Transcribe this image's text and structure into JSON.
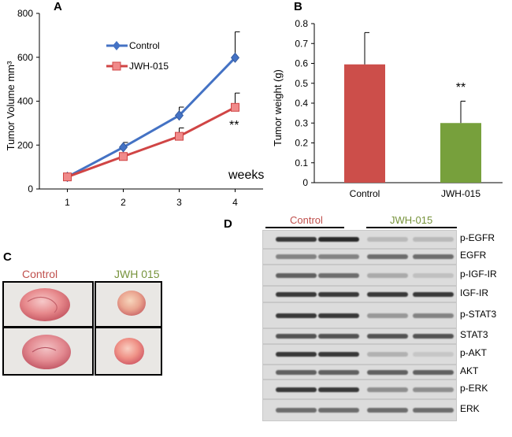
{
  "panels": {
    "a": "A",
    "b": "B",
    "c": "C",
    "d": "D"
  },
  "colors": {
    "control": "#4472C4",
    "jwh": "#D04545",
    "bar_control": "#CC4E4A",
    "bar_jwh": "#77A03C",
    "label_control": "#C0504D",
    "label_jwh": "#77933C"
  },
  "chart_data": [
    {
      "type": "line",
      "id": "A",
      "title": "",
      "xlabel": "",
      "ylabel": "Tumor Volume mm³",
      "x": [
        1,
        2,
        3,
        4
      ],
      "xlim": [
        0.5,
        4.5
      ],
      "ylim": [
        0,
        800
      ],
      "yticks": [
        0,
        200,
        400,
        600,
        800
      ],
      "series": [
        {
          "name": "Control",
          "values": [
            55,
            190,
            335,
            598
          ],
          "errors": [
            8,
            22,
            38,
            118
          ]
        },
        {
          "name": "JWH-015",
          "values": [
            55,
            148,
            240,
            372
          ],
          "errors": [
            6,
            12,
            38,
            65
          ]
        }
      ],
      "annotations": [
        "**",
        "weeks"
      ],
      "legend": "top-left",
      "grid": false
    },
    {
      "type": "bar",
      "id": "B",
      "categories": [
        "Control",
        "JWH-015"
      ],
      "values": [
        0.595,
        0.3
      ],
      "errors": [
        0.16,
        0.11
      ],
      "ylabel": "Tumor weight (g)",
      "ylim": [
        0,
        0.8
      ],
      "yticks": [
        "0",
        "0.1",
        "0.2",
        "0.3",
        "0.4",
        "0.5",
        "0.6",
        "0.7",
        "0.8"
      ],
      "annotations": [
        "**"
      ],
      "grid": false
    }
  ],
  "photos": {
    "control_label": "Control",
    "jwh_label": "JWH 015"
  },
  "blot": {
    "control_label": "Control",
    "jwh_label": "JWH-015",
    "rows": [
      {
        "label": "p-EGFR",
        "intensity": [
          0.85,
          0.9,
          0.25,
          0.25
        ]
      },
      {
        "label": "EGFR",
        "intensity": [
          0.55,
          0.55,
          0.65,
          0.65
        ]
      },
      {
        "label": "p-IGF-IR",
        "intensity": [
          0.7,
          0.65,
          0.35,
          0.2
        ]
      },
      {
        "label": "IGF-IR",
        "intensity": [
          0.85,
          0.85,
          0.85,
          0.85
        ]
      },
      {
        "label": "p-STAT3",
        "intensity": [
          0.85,
          0.85,
          0.45,
          0.55
        ]
      },
      {
        "label": "STAT3",
        "intensity": [
          0.75,
          0.75,
          0.75,
          0.75
        ]
      },
      {
        "label": "p-AKT",
        "intensity": [
          0.85,
          0.85,
          0.3,
          0.15
        ]
      },
      {
        "label": "AKT",
        "intensity": [
          0.7,
          0.7,
          0.7,
          0.7
        ]
      },
      {
        "label": "p-ERK",
        "intensity": [
          0.85,
          0.85,
          0.5,
          0.5
        ]
      },
      {
        "label": "ERK",
        "intensity": [
          0.65,
          0.65,
          0.65,
          0.65
        ]
      }
    ]
  }
}
